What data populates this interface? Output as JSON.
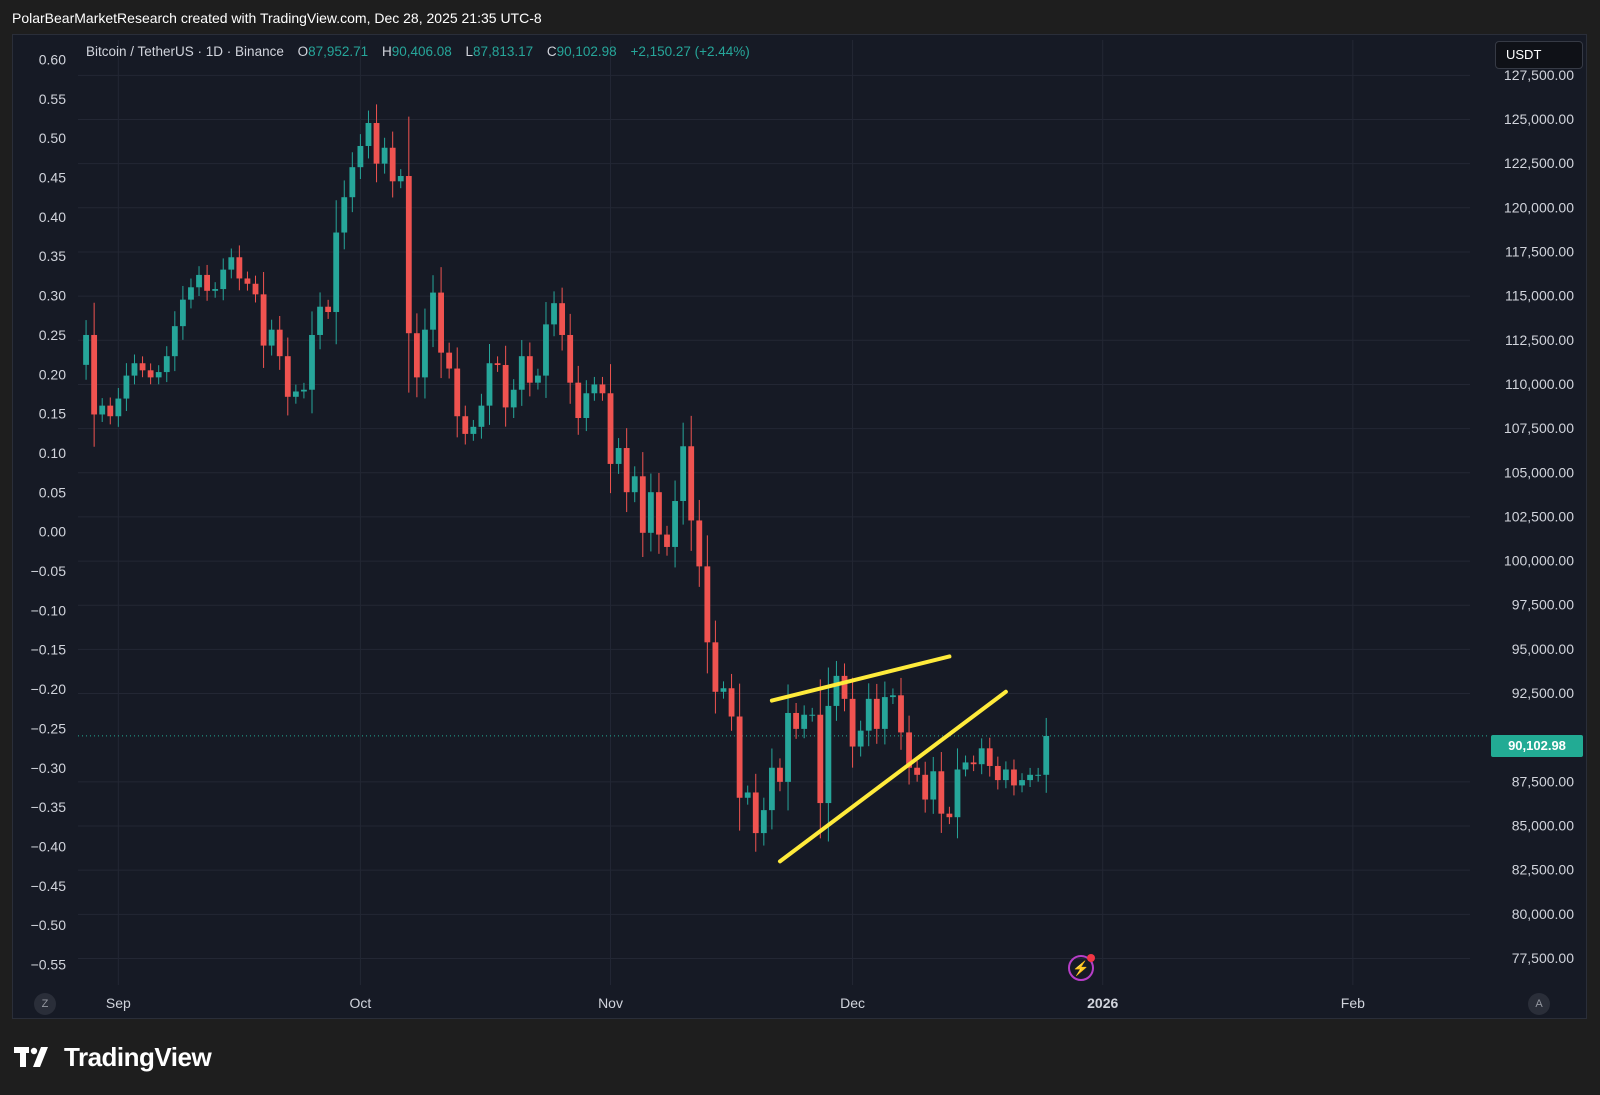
{
  "header": {
    "credit": "PolarBearMarketResearch created with TradingView.com, Dec 28, 2025 21:35 UTC-8"
  },
  "legend": {
    "symbol": "Bitcoin / TetherUS · 1D · Binance",
    "open_label": "O",
    "open": "87,952.71",
    "high_label": "H",
    "high": "90,406.08",
    "low_label": "L",
    "low": "87,813.17",
    "close_label": "C",
    "close": "90,102.98",
    "change": "+2,150.27 (+2.44%)"
  },
  "currency_button": "USDT",
  "last_price_tag": "90,102.98",
  "scale_buttons": {
    "left": "Z",
    "right": "A"
  },
  "brand": {
    "name": "TradingView"
  },
  "colors": {
    "up": "#26a69a",
    "down": "#ef5350",
    "trendline": "#ffeb3b",
    "background": "#161a25",
    "grid": "#232734"
  },
  "chart_data": {
    "type": "candlestick",
    "symbol": "BTCUSDT",
    "timeframe": "1D",
    "last_price": 90102.98,
    "y_right": {
      "ticks": [
        "127,500.00",
        "125,000.00",
        "122,500.00",
        "120,000.00",
        "117,500.00",
        "115,000.00",
        "112,500.00",
        "110,000.00",
        "107,500.00",
        "105,000.00",
        "102,500.00",
        "100,000.00",
        "97,500.00",
        "95,000.00",
        "92,500.00",
        "87,500.00",
        "85,000.00",
        "82,500.00",
        "80,000.00",
        "77,500.00"
      ],
      "range": [
        76000,
        129500
      ]
    },
    "y_left": {
      "ticks": [
        "0.60",
        "0.55",
        "0.50",
        "0.45",
        "0.40",
        "0.35",
        "0.30",
        "0.25",
        "0.20",
        "0.15",
        "0.10",
        "0.05",
        "0.00",
        "−0.05",
        "−0.10",
        "−0.15",
        "−0.20",
        "−0.25",
        "−0.30",
        "−0.35",
        "−0.40",
        "−0.45",
        "−0.50",
        "−0.55"
      ],
      "range": [
        -0.5754,
        0.6254
      ]
    },
    "x_labels": [
      {
        "label": "Sep",
        "date": "2025-09-01"
      },
      {
        "label": "Oct",
        "date": "2025-10-01"
      },
      {
        "label": "Nov",
        "date": "2025-11-01"
      },
      {
        "label": "Dec",
        "date": "2025-12-01"
      },
      {
        "label": "2026",
        "date": "2026-01-01"
      },
      {
        "label": "Feb",
        "date": "2026-02-01"
      }
    ],
    "x_range": [
      "2025-08-27",
      "2026-02-18"
    ],
    "candles_start": "2025-08-28",
    "candle_closes": [
      112800,
      108300,
      108800,
      108200,
      109200,
      110500,
      111200,
      110800,
      110400,
      110700,
      111600,
      113300,
      114800,
      115500,
      116200,
      115300,
      115400,
      116500,
      117200,
      116000,
      115700,
      115100,
      112200,
      113100,
      111600,
      109300,
      109600,
      109700,
      112800,
      114400,
      114100,
      118600,
      120600,
      122300,
      123500,
      124800,
      122500,
      123400,
      121500,
      121800,
      112900,
      110400,
      113100,
      115200,
      111800,
      110900,
      108200,
      107200,
      107600,
      108800,
      111200,
      111100,
      108700,
      109700,
      111600,
      110100,
      110500,
      113400,
      114600,
      112800,
      110100,
      108100,
      109500,
      110000,
      109500,
      105500,
      106400,
      103900,
      104800,
      101600,
      103900,
      101500,
      100800,
      103400,
      106500,
      102300,
      99700,
      95400,
      92600,
      92800,
      91200,
      86600,
      86900,
      84600,
      85900,
      88300,
      87500,
      91400,
      90500,
      91300,
      91300,
      86300,
      91800,
      93500,
      92200,
      89500,
      90400,
      92200,
      90500,
      92300,
      92400,
      90300,
      88300,
      87900,
      86500,
      88100,
      85700,
      85500,
      88200,
      88600,
      88500,
      89400,
      88400,
      87600,
      88200,
      87300,
      87600,
      87900,
      87900,
      90100
    ],
    "trendlines": [
      {
        "from": {
          "date": "2025-11-21",
          "price": 92100
        },
        "to": {
          "date": "2025-12-13",
          "price": 94600
        }
      },
      {
        "from": {
          "date": "2025-11-22",
          "price": 83000
        },
        "to": {
          "date": "2025-12-20",
          "price": 92600
        }
      }
    ]
  }
}
